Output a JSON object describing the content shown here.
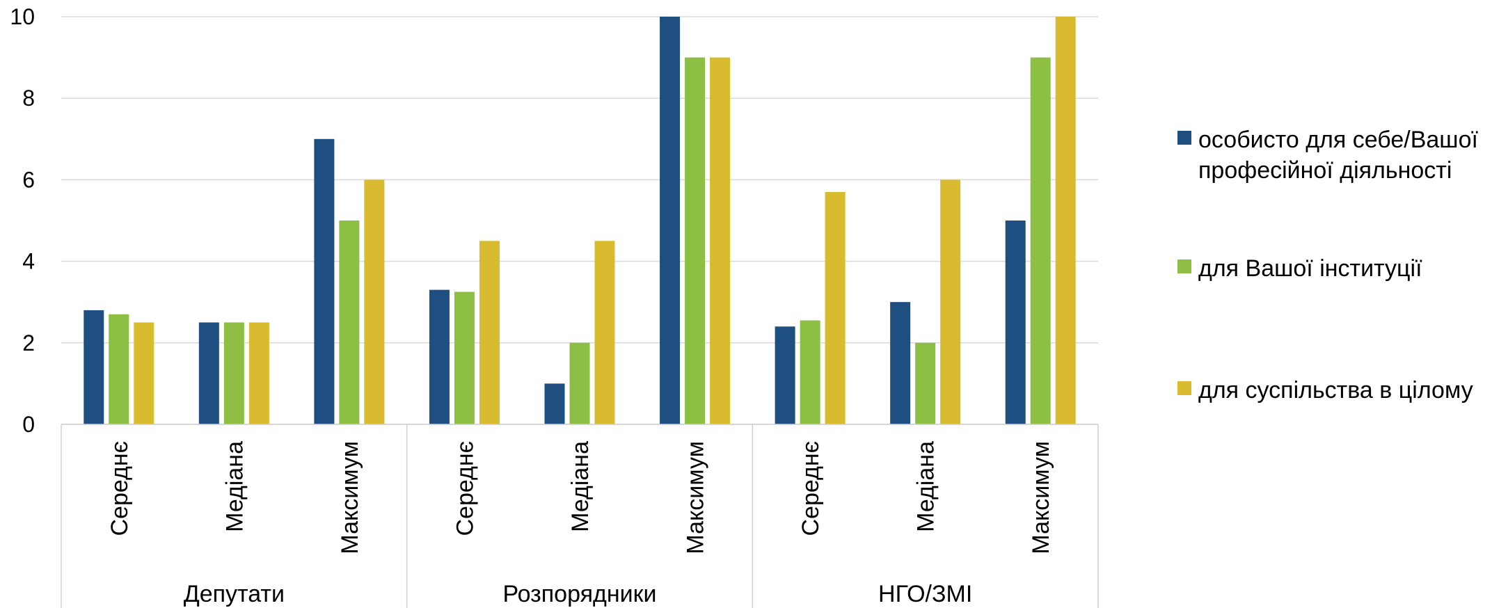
{
  "chart_data": {
    "type": "bar",
    "groups": [
      {
        "label": "Депутати",
        "categories": [
          "Середнє",
          "Медіана",
          "Максимум"
        ]
      },
      {
        "label": "Розпорядники",
        "categories": [
          "Середнє",
          "Медіана",
          "Максимум"
        ]
      },
      {
        "label": "НГО/ЗМІ",
        "categories": [
          "Середнє",
          "Медіана",
          "Максимум"
        ]
      }
    ],
    "series": [
      {
        "name": "особисто для себе/Вашої професійної діяльності",
        "legend_lines": [
          "особисто для себе/Вашої",
          "професійної діяльності"
        ],
        "color": "#1f4e80",
        "values": [
          2.8,
          2.5,
          7,
          3.3,
          1,
          10,
          2.4,
          3,
          5
        ]
      },
      {
        "name": "для Вашої інституції",
        "legend_lines": [
          "для Вашої інституції"
        ],
        "color": "#8dbf45",
        "values": [
          2.7,
          2.5,
          5,
          3.25,
          2,
          9,
          2.55,
          2,
          9
        ]
      },
      {
        "name": "для суспільства в цілому",
        "legend_lines": [
          "для суспільства в цілому"
        ],
        "color": "#d8bb2e",
        "values": [
          2.5,
          2.5,
          6,
          4.5,
          4.5,
          9,
          5.7,
          6,
          10
        ]
      }
    ],
    "ylim": [
      0,
      10
    ],
    "yticks": [
      0,
      2,
      4,
      6,
      8,
      10
    ],
    "grid": true,
    "legend_position": "right"
  }
}
